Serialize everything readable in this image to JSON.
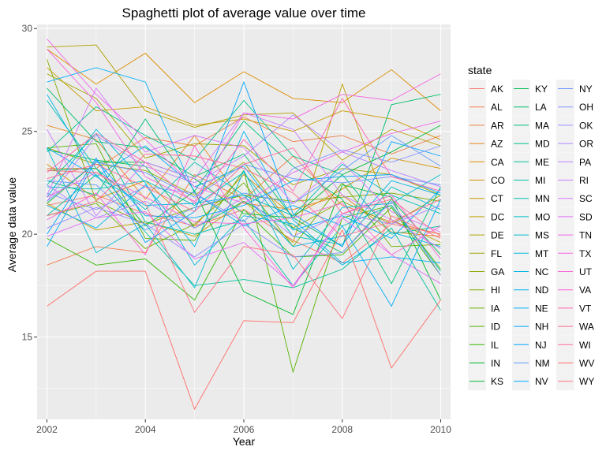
{
  "chart_data": {
    "type": "line",
    "title": "Spaghetti plot of average value over time",
    "xlabel": "Year",
    "ylabel": "Average data value",
    "xlim": [
      2001.8,
      2010.2
    ],
    "ylim": [
      11.0,
      30.2
    ],
    "xticks": [
      2002,
      2004,
      2006,
      2008,
      2010
    ],
    "yticks": [
      15,
      20,
      25,
      30
    ],
    "grid": true,
    "legend_title": "state",
    "legend_position": "right",
    "x": [
      2002,
      2003,
      2004,
      2005,
      2006,
      2007,
      2008,
      2009,
      2010
    ],
    "series": [
      {
        "name": "AK",
        "color": "#F8766D",
        "values": [
          21.4,
          21.9,
          21.0,
          20.4,
          21.2,
          19.7,
          18.6,
          20.5,
          20.0
        ]
      },
      {
        "name": "AL",
        "color": "#F47D4E",
        "values": [
          18.5,
          19.4,
          19.1,
          22.9,
          21.7,
          23.8,
          21.4,
          20.6,
          20.0
        ]
      },
      {
        "name": "AR",
        "color": "#EF7F46",
        "values": [
          23.2,
          23.2,
          24.7,
          24.3,
          25.7,
          24.5,
          24.8,
          23.9,
          24.8
        ]
      },
      {
        "name": "AZ",
        "color": "#E7851E",
        "values": [
          25.3,
          24.6,
          21.7,
          24.8,
          21.5,
          21.2,
          21.9,
          20.1,
          19.9
        ]
      },
      {
        "name": "CA",
        "color": "#DE8C00",
        "values": [
          29.0,
          27.3,
          28.8,
          26.4,
          27.9,
          26.6,
          26.4,
          28.0,
          26.0
        ]
      },
      {
        "name": "CO",
        "color": "#D49200",
        "values": [
          23.4,
          21.7,
          22.6,
          20.4,
          22.9,
          20.9,
          22.2,
          23.7,
          23.2
        ]
      },
      {
        "name": "CT",
        "color": "#CB9900",
        "values": [
          28.1,
          26.0,
          26.2,
          25.3,
          25.6,
          25.0,
          26.0,
          25.6,
          24.6
        ]
      },
      {
        "name": "DC",
        "color": "#BF9E00",
        "values": [
          21.5,
          20.2,
          20.6,
          19.9,
          21.6,
          19.6,
          27.3,
          20.7,
          19.6
        ]
      },
      {
        "name": "DE",
        "color": "#B2A200",
        "values": [
          29.1,
          29.2,
          26.0,
          25.2,
          25.8,
          25.9,
          23.6,
          25.1,
          24.3
        ]
      },
      {
        "name": "FL",
        "color": "#A3A500",
        "values": [
          27.8,
          26.6,
          23.7,
          24.4,
          24.3,
          22.4,
          23.2,
          22.9,
          21.9
        ]
      },
      {
        "name": "GA",
        "color": "#92A900",
        "values": [
          24.2,
          23.4,
          23.1,
          21.9,
          23.5,
          20.3,
          21.6,
          20.5,
          21.9
        ]
      },
      {
        "name": "HI",
        "color": "#7FAE00",
        "values": [
          28.5,
          21.6,
          20.5,
          21.3,
          21.9,
          21.6,
          21.8,
          22.0,
          21.6
        ]
      },
      {
        "name": "IA",
        "color": "#6CB100",
        "values": [
          20.9,
          21.5,
          19.3,
          20.5,
          22.5,
          19.4,
          22.5,
          19.4,
          19.5
        ]
      },
      {
        "name": "ID",
        "color": "#55B400",
        "values": [
          24.2,
          24.4,
          19.8,
          19.7,
          23.1,
          13.3,
          20.8,
          21.4,
          18.3
        ]
      },
      {
        "name": "IL",
        "color": "#33B700",
        "values": [
          19.8,
          18.5,
          18.8,
          16.8,
          21.2,
          18.9,
          19.0,
          21.3,
          18.0
        ]
      },
      {
        "name": "IN",
        "color": "#00B929",
        "values": [
          23.1,
          23.2,
          20.4,
          22.1,
          17.2,
          16.1,
          22.4,
          21.8,
          16.8
        ]
      },
      {
        "name": "KS",
        "color": "#00BA38",
        "values": [
          21.5,
          23.5,
          23.5,
          22.7,
          21.0,
          20.8,
          22.9,
          24.0,
          25.3
        ]
      },
      {
        "name": "KY",
        "color": "#00BC56",
        "values": [
          24.1,
          23.6,
          23.3,
          20.3,
          21.6,
          20.3,
          19.1,
          21.7,
          19.0
        ]
      },
      {
        "name": "LA",
        "color": "#00BD6B",
        "values": [
          27.1,
          24.5,
          24.2,
          22.8,
          23.9,
          20.8,
          19.4,
          26.3,
          26.8
        ]
      },
      {
        "name": "MA",
        "color": "#00BF7D",
        "values": [
          22.6,
          21.9,
          25.6,
          22.1,
          25.5,
          23.3,
          21.7,
          17.6,
          22.3
        ]
      },
      {
        "name": "MD",
        "color": "#00C08D",
        "values": [
          24.0,
          26.2,
          24.8,
          23.6,
          26.5,
          23.8,
          22.9,
          20.0,
          20.4
        ]
      },
      {
        "name": "ME",
        "color": "#00C19C",
        "values": [
          20.9,
          22.9,
          20.1,
          17.5,
          17.8,
          17.4,
          18.3,
          20.3,
          16.3
        ]
      },
      {
        "name": "MI",
        "color": "#00C1AA",
        "values": [
          22.4,
          24.9,
          20.6,
          20.0,
          20.7,
          17.5,
          20.4,
          21.4,
          18.2
        ]
      },
      {
        "name": "MN",
        "color": "#00C0B8",
        "values": [
          26.5,
          23.2,
          21.2,
          23.5,
          21.9,
          20.9,
          23.4,
          21.9,
          21.0
        ]
      },
      {
        "name": "MO",
        "color": "#00BFC4",
        "values": [
          22.3,
          22.2,
          22.6,
          21.4,
          23.0,
          19.9,
          19.5,
          22.3,
          21.2
        ]
      },
      {
        "name": "MS",
        "color": "#00BDD0",
        "values": [
          24.2,
          19.1,
          20.5,
          17.4,
          23.1,
          18.3,
          21.3,
          21.5,
          22.9
        ]
      },
      {
        "name": "MT",
        "color": "#00BADC",
        "values": [
          21.8,
          25.1,
          22.5,
          18.5,
          20.9,
          20.5,
          18.5,
          20.1,
          19.4
        ]
      },
      {
        "name": "NC",
        "color": "#00B6E5",
        "values": [
          26.8,
          22.8,
          21.4,
          21.5,
          21.9,
          19.4,
          19.9,
          22.6,
          21.9
        ]
      },
      {
        "name": "ND",
        "color": "#00B3EF",
        "values": [
          21.4,
          20.3,
          22.4,
          19.4,
          25.0,
          20.7,
          18.6,
          18.9,
          18.6
        ]
      },
      {
        "name": "NE",
        "color": "#00AFF8",
        "values": [
          27.4,
          28.1,
          27.4,
          22.0,
          20.4,
          21.4,
          20.4,
          16.5,
          21.7
        ]
      },
      {
        "name": "NH",
        "color": "#00A9FF",
        "values": [
          24.2,
          22.8,
          24.3,
          22.3,
          23.3,
          20.2,
          20.9,
          19.8,
          22.2
        ]
      },
      {
        "name": "NJ",
        "color": "#00A5FF",
        "values": [
          20.0,
          23.7,
          19.6,
          21.1,
          27.4,
          21.0,
          19.4,
          24.5,
          23.8
        ]
      },
      {
        "name": "NM",
        "color": "#619CFF",
        "values": [
          22.6,
          22.4,
          20.2,
          21.3,
          22.0,
          21.5,
          23.1,
          24.8,
          23.3
        ]
      },
      {
        "name": "NV",
        "color": "#00A8FF",
        "values": [
          19.4,
          23.6,
          20.9,
          20.8,
          21.4,
          22.6,
          22.8,
          22.9,
          22.0
        ]
      },
      {
        "name": "NY",
        "color": "#6E95FF",
        "values": [
          21.6,
          23.5,
          23.0,
          21.8,
          23.4,
          22.7,
          22.5,
          22.8,
          22.4
        ]
      },
      {
        "name": "OH",
        "color": "#8491FF",
        "values": [
          22.0,
          21.2,
          22.3,
          22.0,
          20.6,
          23.2,
          24.1,
          23.5,
          24.3
        ]
      },
      {
        "name": "OK",
        "color": "#9590FF",
        "values": [
          20.3,
          21.3,
          20.5,
          18.9,
          20.5,
          18.9,
          19.1,
          21.6,
          18.0
        ]
      },
      {
        "name": "OR",
        "color": "#AE87FF",
        "values": [
          22.4,
          20.8,
          21.6,
          20.3,
          21.8,
          19.9,
          21.0,
          20.5,
          21.4
        ]
      },
      {
        "name": "PA",
        "color": "#B983FF",
        "values": [
          21.6,
          24.8,
          23.3,
          22.5,
          23.8,
          25.8,
          24.0,
          23.1,
          22.3
        ]
      },
      {
        "name": "RI",
        "color": "#CA7BFF",
        "values": [
          25.1,
          20.9,
          23.5,
          22.7,
          25.9,
          25.1,
          21.9,
          20.7,
          19.3
        ]
      },
      {
        "name": "SC",
        "color": "#D877FF",
        "values": [
          21.9,
          27.1,
          24.0,
          24.8,
          24.2,
          21.5,
          23.5,
          21.1,
          20.1
        ]
      },
      {
        "name": "SD",
        "color": "#E46FF8",
        "values": [
          19.9,
          20.8,
          21.1,
          18.8,
          19.6,
          17.5,
          20.8,
          19.0,
          17.6
        ]
      },
      {
        "name": "TN",
        "color": "#EF67EB",
        "values": [
          29.5,
          26.8,
          24.6,
          22.3,
          21.5,
          23.0,
          24.0,
          24.9,
          25.5
        ]
      },
      {
        "name": "TX",
        "color": "#F564E3",
        "values": [
          29.0,
          26.4,
          22.8,
          21.6,
          25.9,
          25.6,
          26.8,
          26.5,
          27.8
        ]
      },
      {
        "name": "UT",
        "color": "#F967D7",
        "values": [
          21.8,
          23.0,
          21.8,
          20.6,
          20.5,
          20.8,
          21.5,
          19.0,
          20.4
        ]
      },
      {
        "name": "VA",
        "color": "#FB61D7",
        "values": [
          20.7,
          22.0,
          19.0,
          24.3,
          20.3,
          17.4,
          21.0,
          21.9,
          18.8
        ]
      },
      {
        "name": "VT",
        "color": "#FF64B0",
        "values": [
          23.0,
          24.9,
          23.5,
          21.5,
          24.6,
          22.1,
          26.6,
          22.8,
          22.1
        ]
      },
      {
        "name": "WA",
        "color": "#FF6C91",
        "values": [
          20.9,
          21.6,
          23.9,
          23.8,
          23.2,
          22.0,
          19.9,
          20.6,
          21.7
        ]
      },
      {
        "name": "WI",
        "color": "#FF6A98",
        "values": [
          22.7,
          23.4,
          22.3,
          21.1,
          23.4,
          24.2,
          21.0,
          21.7,
          19.9
        ]
      },
      {
        "name": "WV",
        "color": "#FF6C67",
        "values": [
          16.5,
          18.2,
          18.2,
          11.5,
          15.8,
          15.7,
          20.2,
          13.5,
          16.8
        ]
      },
      {
        "name": "WY",
        "color": "#FC717F",
        "values": [
          23.1,
          23.0,
          21.5,
          16.2,
          19.4,
          19.0,
          15.9,
          20.9,
          19.8
        ]
      }
    ]
  }
}
